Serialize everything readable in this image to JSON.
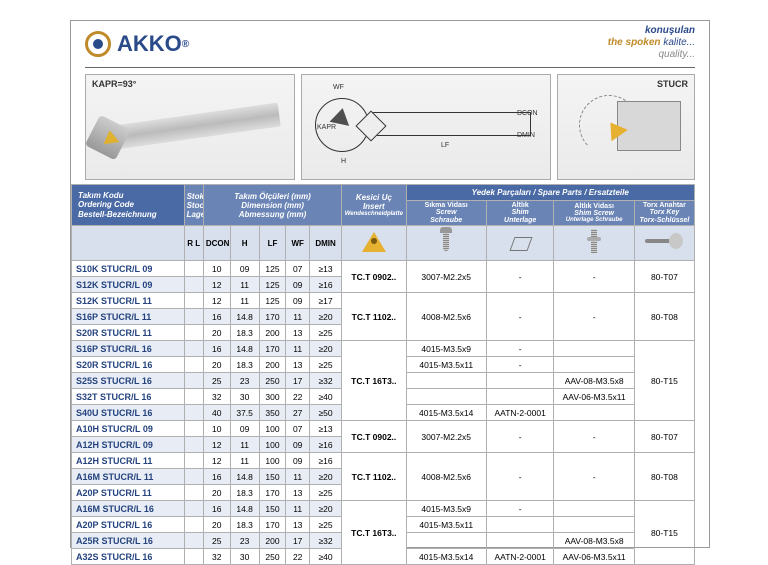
{
  "brand": "AKKO",
  "logo_sup": "®",
  "slogan": {
    "l1": "konuşulan",
    "l2a": "the spoken ",
    "l2b": "kalite...",
    "l3": "quality..."
  },
  "diagram": {
    "kapr": "KAPR=93°",
    "stucr": "STUCR",
    "dims": {
      "wf": "WF",
      "kapr": "KAPR",
      "h": "H",
      "lf": "LF",
      "dcon": "DCON",
      "dmin": "DMIN"
    }
  },
  "headers": {
    "code": {
      "t1": "Takım Kodu",
      "t2": "Ordering Code",
      "t3": "Bestell-Bezeichnung"
    },
    "stock": {
      "t1": "Stok",
      "t2": "Stock",
      "t3": "Lager"
    },
    "dim": {
      "t1": "Takım Ölçüleri (mm)",
      "t2": "Dimension (mm)",
      "t3": "Abmessung (mm)"
    },
    "spare": {
      "t1": "Yedek Parçaları",
      "t2": "Spare Parts",
      "t3": "Ersatzteile"
    },
    "insert": {
      "t1": "Kesici Uç",
      "t2": "Insert",
      "t3": "Wendeschneidplatte"
    },
    "screw": {
      "t1": "Sıkma Vidası",
      "t2": "Screw",
      "t3": "Schraube"
    },
    "shim": {
      "t1": "Altlık",
      "t2": "Shim",
      "t3": "Unterlage"
    },
    "shimscrew": {
      "t1": "Altlık Vidası",
      "t2": "Shim Screw",
      "t3": "Unterlage Schraube"
    },
    "torx": {
      "t1": "Torx Anahtar",
      "t2": "Torx Key",
      "t3": "Torx-Schlüssel"
    },
    "cols": [
      "R L",
      "DCON",
      "H",
      "LF",
      "WF",
      "DMIN"
    ]
  },
  "rows": [
    {
      "code": "S10K STUCR/L 09",
      "dcon": "10",
      "h": "09",
      "lf": "125",
      "wf": "07",
      "dmin": "≥13"
    },
    {
      "code": "S12K STUCR/L 09",
      "dcon": "12",
      "h": "11",
      "lf": "125",
      "wf": "09",
      "dmin": "≥16"
    },
    {
      "code": "S12K STUCR/L 11",
      "dcon": "12",
      "h": "11",
      "lf": "125",
      "wf": "09",
      "dmin": "≥17"
    },
    {
      "code": "S16P STUCR/L 11",
      "dcon": "16",
      "h": "14.8",
      "lf": "170",
      "wf": "11",
      "dmin": "≥20"
    },
    {
      "code": "S20R STUCR/L 11",
      "dcon": "20",
      "h": "18.3",
      "lf": "200",
      "wf": "13",
      "dmin": "≥25"
    },
    {
      "code": "S16P STUCR/L 16",
      "dcon": "16",
      "h": "14.8",
      "lf": "170",
      "wf": "11",
      "dmin": "≥20"
    },
    {
      "code": "S20R STUCR/L 16",
      "dcon": "20",
      "h": "18.3",
      "lf": "200",
      "wf": "13",
      "dmin": "≥25"
    },
    {
      "code": "S25S STUCR/L 16",
      "dcon": "25",
      "h": "23",
      "lf": "250",
      "wf": "17",
      "dmin": "≥32"
    },
    {
      "code": "S32T STUCR/L 16",
      "dcon": "32",
      "h": "30",
      "lf": "300",
      "wf": "22",
      "dmin": "≥40"
    },
    {
      "code": "S40U STUCR/L 16",
      "dcon": "40",
      "h": "37.5",
      "lf": "350",
      "wf": "27",
      "dmin": "≥50"
    },
    {
      "code": "A10H STUCR/L 09",
      "dcon": "10",
      "h": "09",
      "lf": "100",
      "wf": "07",
      "dmin": "≥13"
    },
    {
      "code": "A12H STUCR/L 09",
      "dcon": "12",
      "h": "11",
      "lf": "100",
      "wf": "09",
      "dmin": "≥16"
    },
    {
      "code": "A12H STUCR/L 11",
      "dcon": "12",
      "h": "11",
      "lf": "100",
      "wf": "09",
      "dmin": "≥16"
    },
    {
      "code": "A16M STUCR/L 11",
      "dcon": "16",
      "h": "14.8",
      "lf": "150",
      "wf": "11",
      "dmin": "≥20"
    },
    {
      "code": "A20P STUCR/L 11",
      "dcon": "20",
      "h": "18.3",
      "lf": "170",
      "wf": "13",
      "dmin": "≥25"
    },
    {
      "code": "A16M STUCR/L 16",
      "dcon": "16",
      "h": "14.8",
      "lf": "150",
      "wf": "11",
      "dmin": "≥20"
    },
    {
      "code": "A20P STUCR/L 16",
      "dcon": "20",
      "h": "18.3",
      "lf": "170",
      "wf": "13",
      "dmin": "≥25"
    },
    {
      "code": "A25R STUCR/L 16",
      "dcon": "25",
      "h": "23",
      "lf": "200",
      "wf": "17",
      "dmin": "≥32"
    },
    {
      "code": "A32S STUCR/L 16",
      "dcon": "32",
      "h": "30",
      "lf": "250",
      "wf": "22",
      "dmin": "≥40"
    }
  ],
  "spareGroups": [
    {
      "rows": 2,
      "insert": "TC.T 0902..",
      "screw": "3007-M2.2x5",
      "shim": "-",
      "shimscrew": "-",
      "torx": "80-T07"
    },
    {
      "rows": 3,
      "insert": "TC.T 1102..",
      "screw": "4008-M2.5x6",
      "shim": "-",
      "shimscrew": "-",
      "torx": "80-T08"
    },
    {
      "rows": 5,
      "insert": "TC.T 16T3..",
      "screw": [
        "4015-M3.5x9",
        "4015-M3.5x11",
        "",
        "",
        "4015-M3.5x14"
      ],
      "shim": [
        "-",
        "-",
        "",
        "",
        "AATN-2-0001"
      ],
      "shimscrew": [
        "",
        "",
        "AAV-08-M3.5x8",
        "AAV-06-M3.5x11",
        ""
      ],
      "torx": "80-T15"
    },
    {
      "rows": 2,
      "insert": "TC.T 0902..",
      "screw": "3007-M2.2x5",
      "shim": "-",
      "shimscrew": "-",
      "torx": "80-T07"
    },
    {
      "rows": 3,
      "insert": "TC.T 1102..",
      "screw": "4008-M2.5x6",
      "shim": "-",
      "shimscrew": "-",
      "torx": "80-T08"
    },
    {
      "rows": 4,
      "insert": "TC.T 16T3..",
      "screw": [
        "4015-M3.5x9",
        "4015-M3.5x11",
        "",
        "4015-M3.5x14"
      ],
      "shim": [
        "-",
        "",
        "",
        "AATN-2-0001"
      ],
      "shimscrew": [
        "",
        "",
        "AAV-08-M3.5x8",
        "AAV-06-M3.5x11"
      ],
      "torx": "80-T15"
    }
  ],
  "colors": {
    "brand_blue": "#2a4a8a",
    "brand_gold": "#c08a2a",
    "header_bg": "#6a84b5",
    "spare_bg": "#4a6aa5",
    "rowhead_bg": "#a43a52",
    "stripe": "#e8ecf4"
  }
}
